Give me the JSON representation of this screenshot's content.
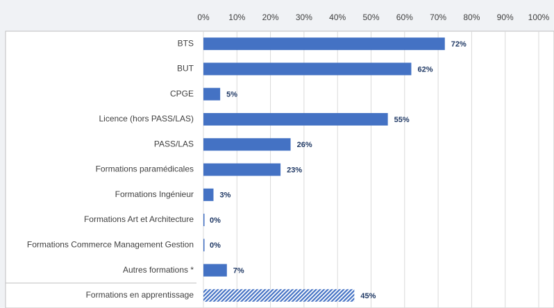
{
  "chart_data": {
    "type": "hbar",
    "categories": [
      "BTS",
      "BUT",
      "CPGE",
      "Licence (hors PASS/LAS)",
      "PASS/LAS",
      "Formations paramédicales",
      "Formations Ingénieur",
      "Formations Art et Architecture",
      "Formations Commerce Management Gestion",
      "Autres formations *",
      "Formations en apprentissage"
    ],
    "values": [
      72,
      62,
      5,
      55,
      26,
      23,
      3,
      0,
      0,
      7,
      45
    ],
    "value_labels": [
      "72%",
      "62%",
      "5%",
      "55%",
      "26%",
      "23%",
      "3%",
      "0%",
      "0%",
      "7%",
      "45%"
    ],
    "color": "#4472c4",
    "patterns": [
      "solid",
      "solid",
      "solid",
      "solid",
      "solid",
      "solid",
      "solid",
      "solid",
      "solid",
      "solid",
      "hatched"
    ],
    "xlim": [
      0,
      100
    ],
    "xticks": [
      {
        "value": 0,
        "label": "0%"
      },
      {
        "value": 10,
        "label": "10%"
      },
      {
        "value": 20,
        "label": "20%"
      },
      {
        "value": 30,
        "label": "30%"
      },
      {
        "value": 40,
        "label": "40%"
      },
      {
        "value": 50,
        "label": "50%"
      },
      {
        "value": 60,
        "label": "60%"
      },
      {
        "value": 70,
        "label": "70%"
      },
      {
        "value": 80,
        "label": "80%"
      },
      {
        "value": 90,
        "label": "90%"
      },
      {
        "value": 100,
        "label": "100%"
      }
    ],
    "grid": true
  }
}
